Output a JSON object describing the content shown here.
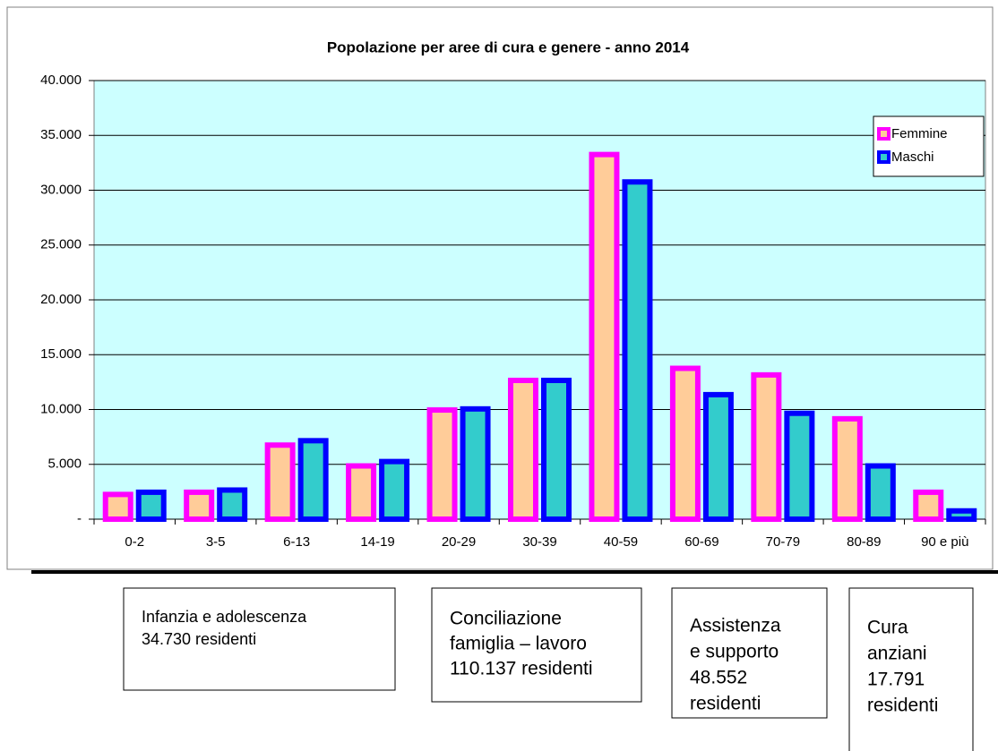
{
  "chart_data": {
    "type": "bar",
    "title": "Popolazione per aree di cura e genere - anno 2014",
    "categories": [
      "0-2",
      "3-5",
      "6-13",
      "14-19",
      "20-29",
      "30-39",
      "40-59",
      "60-69",
      "70-79",
      "80-89",
      "90 e più"
    ],
    "series": [
      {
        "name": "Femmine",
        "color": "#ffcc99",
        "stroke": "#ff00ff",
        "values": [
          2500,
          2700,
          7000,
          5100,
          10200,
          12900,
          33500,
          14000,
          13400,
          9400,
          2700
        ]
      },
      {
        "name": "Maschi",
        "color": "#33cccc",
        "stroke": "#0000ff",
        "values": [
          2700,
          2900,
          7400,
          5500,
          10300,
          12900,
          31000,
          11600,
          9900,
          5100,
          1000
        ]
      }
    ],
    "ylim": [
      0,
      40000
    ],
    "yticks": [
      {
        "value": 0,
        "label": "-"
      },
      {
        "value": 5000,
        "label": "5.000"
      },
      {
        "value": 10000,
        "label": "10.000"
      },
      {
        "value": 15000,
        "label": "15.000"
      },
      {
        "value": 20000,
        "label": "20.000"
      },
      {
        "value": 25000,
        "label": "25.000"
      },
      {
        "value": 30000,
        "label": "30.000"
      },
      {
        "value": 35000,
        "label": "35.000"
      },
      {
        "value": 40000,
        "label": "40.000"
      }
    ],
    "grid": true,
    "legend": "right",
    "plot_background": "#ccffff"
  },
  "annotations": [
    [
      "Infanzia e adolescenza",
      "34.730 residenti"
    ],
    [
      "Conciliazione",
      "famiglia – lavoro",
      "110.137 residenti"
    ],
    [
      "Assistenza",
      "e supporto",
      "48.552",
      "residenti"
    ],
    [
      "Cura",
      "anziani",
      "17.791",
      "residenti"
    ]
  ]
}
